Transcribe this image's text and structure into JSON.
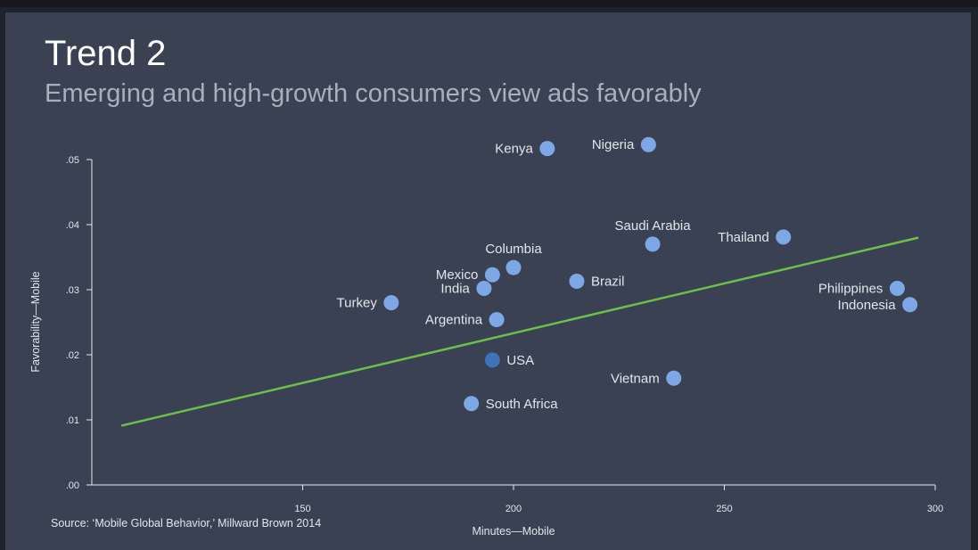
{
  "slide": {
    "title": "Trend 2",
    "subtitle": "Emerging and high-growth consumers view ads favorably",
    "source": "Source: ‘Mobile Global Behavior,’ Millward Brown 2014"
  },
  "colors": {
    "background": "#3a4152",
    "point": "#7ea7e6",
    "point_highlight": "#3f72b8",
    "trendline": "#6cc04a",
    "axis": "#e6e9ef",
    "label": "#e2e6ee"
  },
  "chart_data": {
    "type": "scatter",
    "xlabel": "Minutes—Mobile",
    "ylabel": "Favorability—Mobile",
    "xlim": [
      100,
      300
    ],
    "ylim": [
      0,
      0.05
    ],
    "x_ticks": [
      150,
      200,
      250,
      300
    ],
    "x_tick_labels": [
      "150",
      "200",
      "250",
      "300"
    ],
    "y_ticks": [
      0,
      0.01,
      0.02,
      0.03,
      0.04,
      0.05
    ],
    "y_tick_labels": [
      ".00",
      ".01",
      ".02",
      ".03",
      ".04",
      ".05"
    ],
    "grid": false,
    "points": [
      {
        "label": "Kenya",
        "x": 208,
        "y": 0.0517,
        "label_side": "left"
      },
      {
        "label": "Nigeria",
        "x": 232,
        "y": 0.0523,
        "label_side": "left"
      },
      {
        "label": "Saudi Arabia",
        "x": 233,
        "y": 0.037,
        "label_side": "above"
      },
      {
        "label": "Thailand",
        "x": 264,
        "y": 0.0381,
        "label_side": "left"
      },
      {
        "label": "Columbia",
        "x": 200,
        "y": 0.0334,
        "label_side": "above"
      },
      {
        "label": "Mexico",
        "x": 195,
        "y": 0.0323,
        "label_side": "left"
      },
      {
        "label": "India",
        "x": 193,
        "y": 0.0302,
        "label_side": "left"
      },
      {
        "label": "Brazil",
        "x": 215,
        "y": 0.0313,
        "label_side": "right"
      },
      {
        "label": "Turkey",
        "x": 171,
        "y": 0.028,
        "label_side": "left"
      },
      {
        "label": "Argentina",
        "x": 196,
        "y": 0.0254,
        "label_side": "left"
      },
      {
        "label": "Philippines",
        "x": 291,
        "y": 0.0302,
        "label_side": "left"
      },
      {
        "label": "Indonesia",
        "x": 294,
        "y": 0.0277,
        "label_side": "left"
      },
      {
        "label": "USA",
        "x": 195,
        "y": 0.0192,
        "label_side": "right",
        "highlight": true
      },
      {
        "label": "Vietnam",
        "x": 238,
        "y": 0.0164,
        "label_side": "left"
      },
      {
        "label": "South Africa",
        "x": 190,
        "y": 0.0125,
        "label_side": "right"
      }
    ],
    "trendline": {
      "x": [
        107,
        296
      ],
      "y": [
        0.0091,
        0.038
      ]
    }
  }
}
